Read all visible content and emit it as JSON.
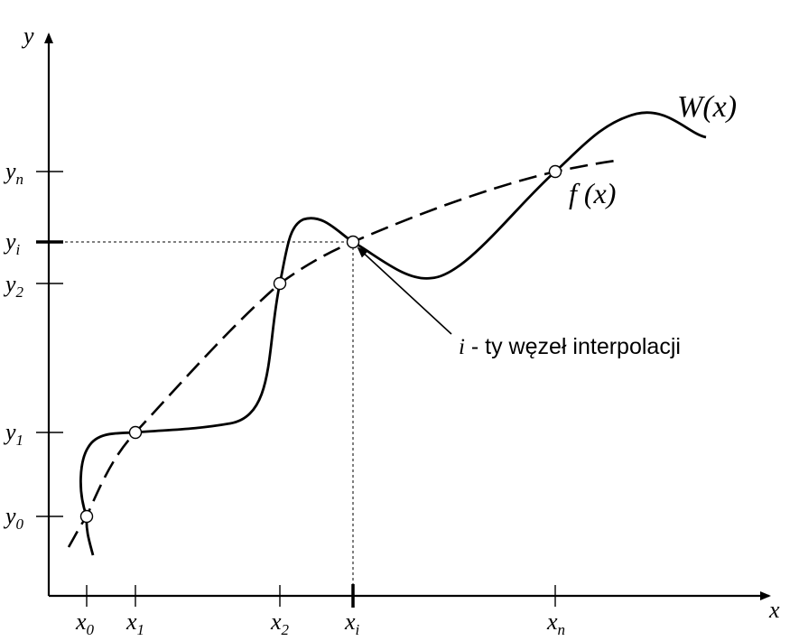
{
  "axes": {
    "x_label": "x",
    "y_label": "y"
  },
  "x_ticks": [
    {
      "base": "x",
      "sub": "0"
    },
    {
      "base": "x",
      "sub": "1"
    },
    {
      "base": "x",
      "sub": "2"
    },
    {
      "base": "x",
      "sub": "i"
    },
    {
      "base": "x",
      "sub": "n"
    }
  ],
  "y_ticks": [
    {
      "base": "y",
      "sub": "0"
    },
    {
      "base": "y",
      "sub": "1"
    },
    {
      "base": "y",
      "sub": "2"
    },
    {
      "base": "y",
      "sub": "i"
    },
    {
      "base": "y",
      "sub": "n"
    }
  ],
  "curves": {
    "interpolant_label": "W(x)",
    "function_label": "f (x)"
  },
  "annotation": {
    "index": "i",
    "text": " - ty węzeł interpolacji"
  }
}
